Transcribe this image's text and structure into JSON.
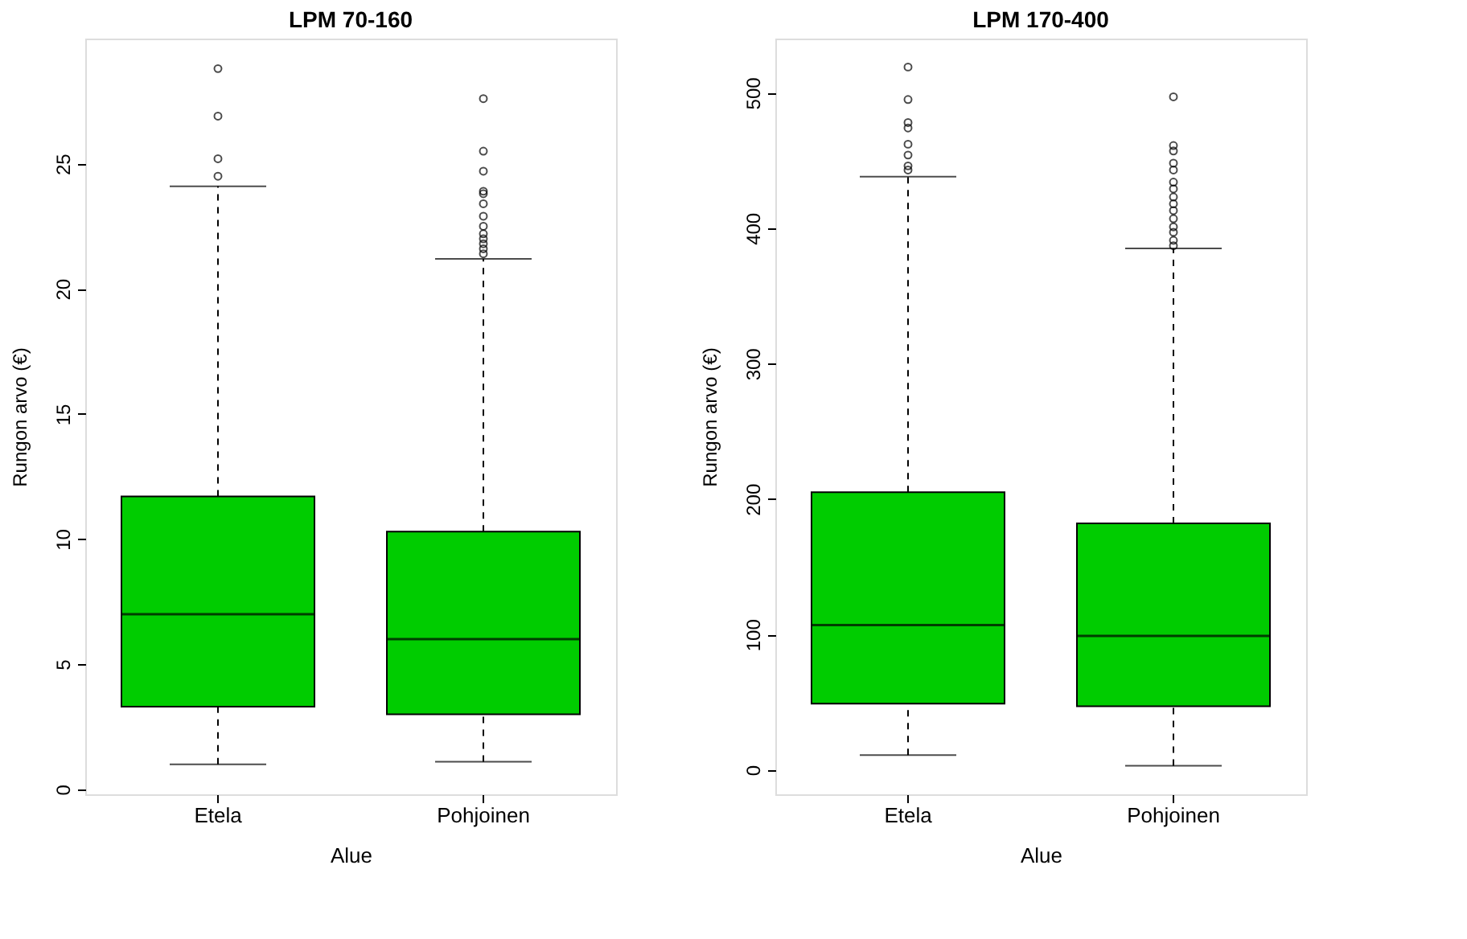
{
  "chart_data": [
    {
      "type": "box",
      "title": "LPM 70-160",
      "xlabel": "Alue",
      "ylabel": "Rungon arvo (€)",
      "categories": [
        "Etela",
        "Pohjoinen"
      ],
      "color": "#00cc00",
      "ylim": [
        -0.2,
        30
      ],
      "yticks": [
        0,
        5,
        10,
        15,
        20,
        25
      ],
      "grid": false,
      "boxes": [
        {
          "low": 1.0,
          "q1": 3.3,
          "median": 7.0,
          "q3": 11.7,
          "high": 24.1,
          "outliers": [
            24.5,
            25.2,
            26.9,
            28.8
          ]
        },
        {
          "low": 1.1,
          "q1": 3.0,
          "median": 6.0,
          "q3": 10.3,
          "high": 21.2,
          "outliers": [
            21.4,
            21.6,
            21.8,
            22.0,
            22.2,
            22.5,
            22.9,
            23.4,
            23.8,
            23.9,
            24.7,
            25.5,
            27.6
          ]
        }
      ]
    },
    {
      "type": "box",
      "title": "LPM 170-400",
      "xlabel": "Alue",
      "ylabel": "Rungon arvo (€)",
      "categories": [
        "Etela",
        "Pohjoinen"
      ],
      "color": "#00cc00",
      "ylim": [
        -18,
        540
      ],
      "yticks": [
        0,
        100,
        200,
        300,
        400,
        500
      ],
      "grid": false,
      "boxes": [
        {
          "low": 11,
          "q1": 49,
          "median": 107,
          "q3": 205,
          "high": 438,
          "outliers": [
            443,
            446,
            454,
            462,
            474,
            478,
            495,
            519
          ]
        },
        {
          "low": 3,
          "q1": 47,
          "median": 99,
          "q3": 182,
          "high": 385,
          "outliers": [
            387,
            391,
            397,
            401,
            407,
            413,
            418,
            423,
            429,
            434,
            443,
            448,
            457,
            461,
            497
          ]
        }
      ]
    }
  ]
}
